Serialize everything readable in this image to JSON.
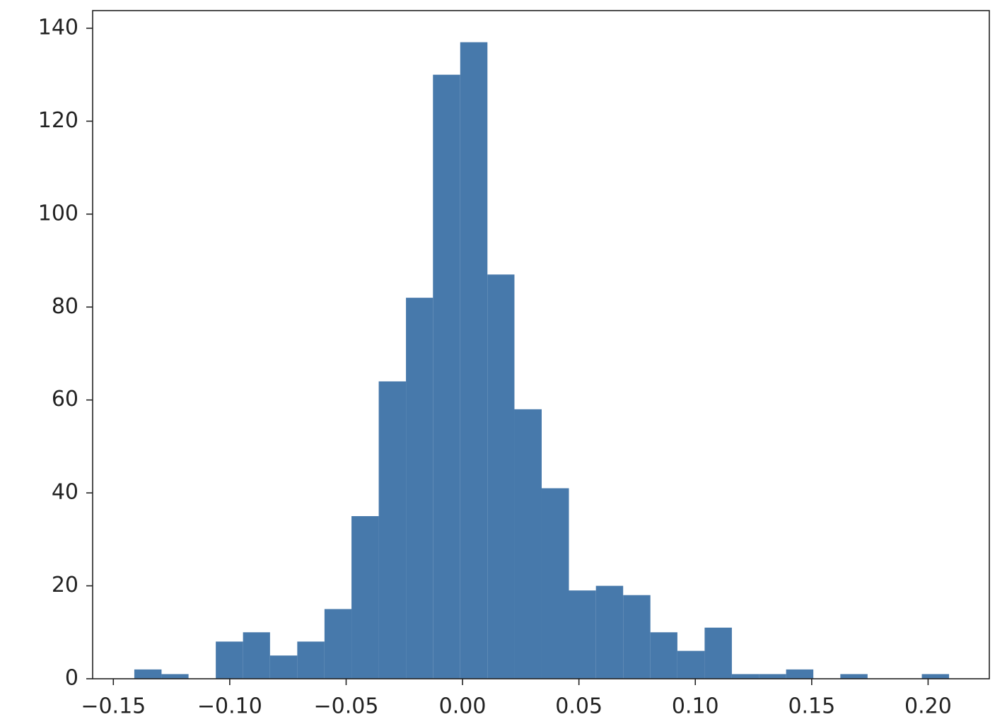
{
  "chart_data": {
    "type": "histogram",
    "bins": [
      -0.141,
      -0.1293,
      -0.1177,
      -0.106,
      -0.0943,
      -0.0827,
      -0.071,
      -0.0593,
      -0.0477,
      -0.036,
      -0.0243,
      -0.0127,
      -0.001,
      0.0107,
      0.0223,
      0.034,
      0.0457,
      0.0573,
      0.069,
      0.0807,
      0.0923,
      0.104,
      0.1157,
      0.1273,
      0.139,
      0.1507,
      0.1623,
      0.174,
      0.1857,
      0.1973,
      0.209
    ],
    "values": [
      2,
      1,
      0,
      8,
      10,
      5,
      8,
      15,
      35,
      64,
      82,
      130,
      137,
      87,
      58,
      41,
      19,
      20,
      18,
      10,
      6,
      11,
      1,
      1,
      2,
      0,
      1,
      0,
      0,
      1
    ],
    "color": "#4779ab",
    "xlim": [
      -0.1589,
      0.2263
    ],
    "ylim": [
      0,
      143.8
    ],
    "xticks": [
      {
        "value": -0.15,
        "label": "−0.15"
      },
      {
        "value": -0.1,
        "label": "−0.10"
      },
      {
        "value": -0.05,
        "label": "−0.05"
      },
      {
        "value": 0,
        "label": "0.00"
      },
      0.05,
      {
        "value": 0.1,
        "label": "0.10"
      },
      0.15,
      {
        "value": 0.2,
        "label": "0.20"
      }
    ],
    "yticks": [
      0,
      20,
      40,
      60,
      80,
      100,
      120,
      140
    ],
    "grid": false
  }
}
